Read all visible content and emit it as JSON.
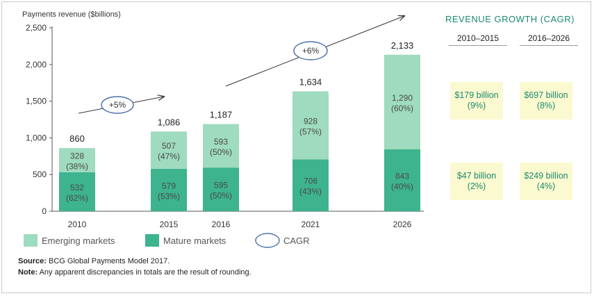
{
  "chart_data": {
    "type": "bar",
    "stacked": true,
    "ylabel": "Payments revenue ($billions)",
    "ylim": [
      0,
      2500
    ],
    "yticks": [
      "0",
      "500",
      "1,000",
      "1,500",
      "2,000",
      "2,500"
    ],
    "ytick_values": [
      0,
      500,
      1000,
      1500,
      2000,
      2500
    ],
    "categories": [
      "2010",
      "2015",
      "2016",
      "2021",
      "2026"
    ],
    "totals": [
      "860",
      "1,086",
      "1,187",
      "1,634",
      "2,133"
    ],
    "total_values": [
      860,
      1086,
      1187,
      1634,
      2133
    ],
    "series": [
      {
        "name": "Mature markets",
        "color": "#3db38e",
        "values": [
          532,
          579,
          595,
          706,
          843
        ],
        "labels": [
          "532",
          "579",
          "595",
          "706",
          "843"
        ],
        "shares": [
          "(62%)",
          "(53%)",
          "(50%)",
          "(43%)",
          "(40%)"
        ]
      },
      {
        "name": "Emerging markets",
        "color": "#9fdbbf",
        "values": [
          328,
          507,
          593,
          928,
          1290
        ],
        "labels": [
          "328",
          "507",
          "593",
          "928",
          "1,290"
        ],
        "shares": [
          "(38%)",
          "(47%)",
          "(50%)",
          "(57%)",
          "(60%)"
        ]
      }
    ],
    "cagr_arrows": [
      "+5%",
      "+6%"
    ],
    "legend": [
      "Emerging markets",
      "Mature markets",
      "CAGR"
    ],
    "legend_position": "bottom"
  },
  "panel": {
    "title": "REVENUE GROWTH (CAGR)",
    "columns": [
      "2010–2015",
      "2016–2026"
    ],
    "rows": [
      {
        "series": "Emerging markets",
        "cells": [
          {
            "value": "$179 billion",
            "pct": "(9%)"
          },
          {
            "value": "$697 billion",
            "pct": "(8%)"
          }
        ]
      },
      {
        "series": "Mature markets",
        "cells": [
          {
            "value": "$47 billion",
            "pct": "(2%)"
          },
          {
            "value": "$249 billion",
            "pct": "(4%)"
          }
        ]
      }
    ],
    "box_color": "#fbf9cf",
    "text_color": "#1a8a6f"
  },
  "footer": {
    "source_label": "Source:",
    "source_text": "BCG Global Payments Model 2017.",
    "note_label": "Note:",
    "note_text": "Any apparent discrepancies in totals are the result of rounding."
  }
}
